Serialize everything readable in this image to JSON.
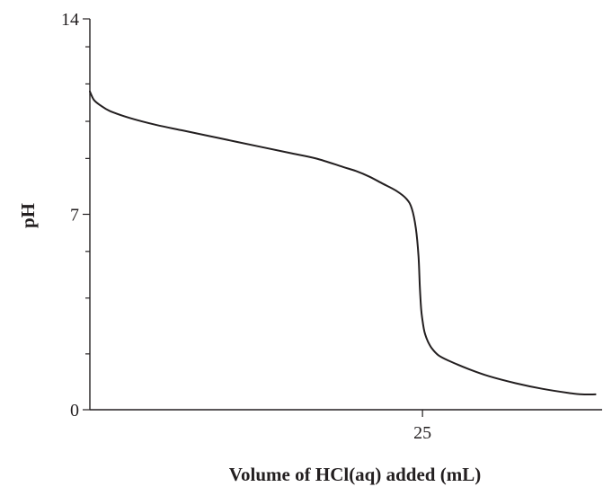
{
  "chart_data": {
    "type": "line",
    "title": "",
    "xlabel": "Volume of HCl(aq) added (mL)",
    "ylabel": "pH",
    "xlim": [
      0,
      38.5
    ],
    "ylim": [
      0,
      14
    ],
    "x_ticks": [
      {
        "value": 25,
        "label": "25"
      }
    ],
    "y_ticks": [
      {
        "value": 0,
        "label": "0"
      },
      {
        "value": 7,
        "label": "7"
      },
      {
        "value": 14,
        "label": "14"
      }
    ],
    "y_minor_ticks": [
      2,
      4,
      5.67,
      9,
      10.33,
      11.67,
      13
    ],
    "grid": false,
    "legend": "none",
    "series": [
      {
        "x": [
          0,
          0.3,
          0.8,
          1.5,
          3,
          5,
          7,
          9,
          11,
          13,
          15,
          17,
          19,
          20,
          21,
          22,
          23,
          23.8,
          24.2,
          24.5,
          24.7,
          24.8,
          24.9,
          25.0,
          25.1,
          25.2,
          25.4,
          25.7,
          26.2,
          27,
          28.5,
          30,
          32,
          34,
          36,
          37,
          38
        ],
        "y": [
          11.4,
          11.1,
          10.9,
          10.7,
          10.45,
          10.2,
          10.0,
          9.8,
          9.6,
          9.4,
          9.2,
          9.0,
          8.7,
          8.55,
          8.35,
          8.1,
          7.85,
          7.55,
          7.2,
          6.5,
          5.5,
          4.4,
          3.6,
          3.2,
          2.9,
          2.7,
          2.45,
          2.2,
          1.95,
          1.75,
          1.45,
          1.2,
          0.95,
          0.75,
          0.6,
          0.55,
          0.55
        ]
      }
    ]
  }
}
